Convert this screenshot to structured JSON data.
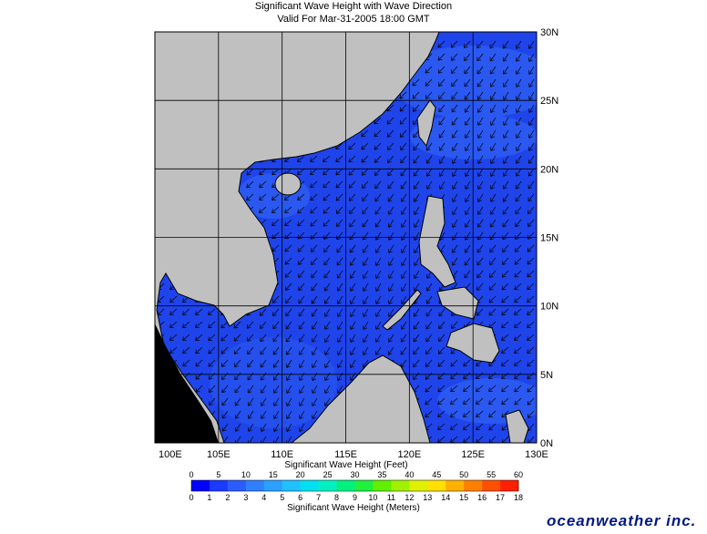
{
  "header": {
    "title": "Significant Wave Height with Wave Direction",
    "subtitle": "Valid For Mar-31-2005 18:00 GMT"
  },
  "map": {
    "lat_labels": [
      "0N",
      "5N",
      "10N",
      "15N",
      "20N",
      "25N",
      "30N"
    ],
    "lon_labels": [
      "100E",
      "105E",
      "110E",
      "115E",
      "120E",
      "125E",
      "130E"
    ]
  },
  "legend": {
    "feet_label": "Significant Wave Height (Feet)",
    "feet_ticks": [
      "0",
      "5",
      "10",
      "15",
      "20",
      "25",
      "30",
      "35",
      "40",
      "45",
      "50",
      "55",
      "60"
    ],
    "meter_ticks": [
      "0",
      "1",
      "2",
      "3",
      "4",
      "5",
      "6",
      "7",
      "8",
      "9",
      "10",
      "11",
      "12",
      "13",
      "14",
      "15",
      "16",
      "17",
      "18"
    ],
    "meter_label": "Significant Wave Height (Meters)",
    "colors": [
      "#0000ff",
      "#1a3cff",
      "#2a5cff",
      "#2f7fff",
      "#2aa0ff",
      "#20c0ff",
      "#00e0f0",
      "#00f0c0",
      "#00f080",
      "#20f040",
      "#60f000",
      "#a0f000",
      "#e0f000",
      "#ffe000",
      "#ffb000",
      "#ff8000",
      "#ff5000",
      "#ff2000"
    ]
  },
  "logo": "oceanweather inc."
}
